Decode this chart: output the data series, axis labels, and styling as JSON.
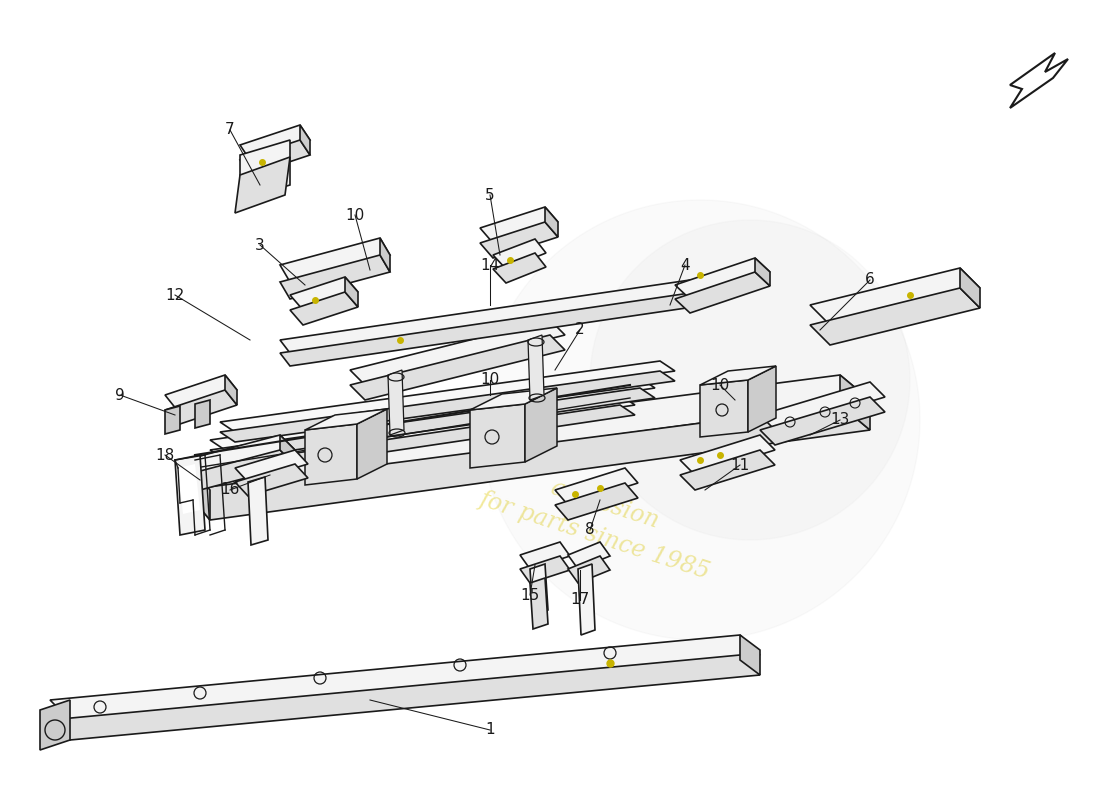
{
  "background_color": "#ffffff",
  "line_color": "#1a1a1a",
  "label_color": "#1a1a1a",
  "font_size": 11,
  "fc_light": "#f4f4f4",
  "fc_mid": "#e0e0e0",
  "fc_dark": "#cccccc",
  "fc_side": "#d8d8d8",
  "gold_dot": "#c8b400",
  "watermark_text1": "a passion",
  "watermark_text2": "for parts since 1985",
  "watermark_color": "#e8d84a",
  "labels": [
    [
      "1",
      490,
      730,
      370,
      700
    ],
    [
      "2",
      580,
      330,
      555,
      370
    ],
    [
      "3",
      260,
      245,
      305,
      285
    ],
    [
      "4",
      685,
      265,
      670,
      305
    ],
    [
      "5",
      490,
      195,
      500,
      255
    ],
    [
      "6",
      870,
      280,
      820,
      330
    ],
    [
      "7",
      230,
      130,
      260,
      185
    ],
    [
      "8",
      590,
      530,
      600,
      500
    ],
    [
      "9",
      120,
      395,
      175,
      415
    ],
    [
      "10",
      355,
      215,
      370,
      270
    ],
    [
      "10",
      490,
      380,
      490,
      395
    ],
    [
      "10",
      720,
      385,
      735,
      400
    ],
    [
      "11",
      740,
      465,
      705,
      490
    ],
    [
      "12",
      175,
      295,
      250,
      340
    ],
    [
      "13",
      840,
      420,
      810,
      435
    ],
    [
      "14",
      490,
      265,
      490,
      305
    ],
    [
      "15",
      530,
      595,
      535,
      565
    ],
    [
      "16",
      230,
      490,
      270,
      475
    ],
    [
      "17",
      580,
      600,
      580,
      570
    ],
    [
      "18",
      165,
      455,
      200,
      480
    ]
  ]
}
